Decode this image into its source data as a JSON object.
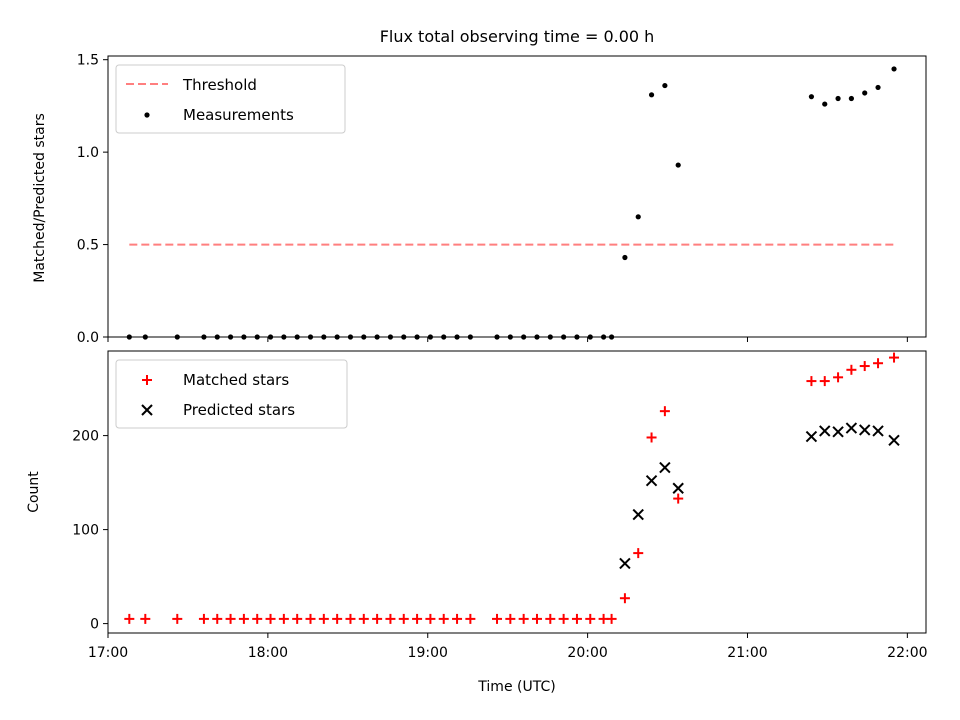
{
  "chart_data": [
    {
      "type": "scatter",
      "title": "Flux total observing time = 0.00 h",
      "xlabel": "",
      "ylabel": "Matched/Predicted stars",
      "xlim": [
        "17:00",
        "22:07"
      ],
      "ylim": [
        0,
        1.52
      ],
      "yticks": [
        0.0,
        0.5,
        1.0,
        1.5
      ],
      "ytick_labels": [
        "0.0",
        "0.5",
        "1.0",
        "1.5"
      ],
      "grid": false,
      "legend": "top-left",
      "threshold": {
        "name": "Threshold",
        "color": "#ff7f7f",
        "value": 0.5,
        "x": [
          "17:08",
          "21:55"
        ]
      },
      "series": [
        {
          "name": "Measurements",
          "color": "#000000",
          "x": [
            "17:08",
            "17:14",
            "17:26",
            "17:36",
            "17:41",
            "17:46",
            "17:51",
            "17:56",
            "18:01",
            "18:06",
            "18:11",
            "18:16",
            "18:21",
            "18:26",
            "18:31",
            "18:36",
            "18:41",
            "18:46",
            "18:51",
            "18:56",
            "19:01",
            "19:06",
            "19:11",
            "19:16",
            "19:26",
            "19:31",
            "19:36",
            "19:41",
            "19:46",
            "19:51",
            "19:56",
            "20:01",
            "20:06",
            "20:09",
            "20:14",
            "20:19",
            "20:24",
            "20:29",
            "20:34",
            "21:24",
            "21:29",
            "21:34",
            "21:39",
            "21:44",
            "21:49",
            "21:55"
          ],
          "y": [
            0,
            0,
            0,
            0,
            0,
            0,
            0,
            0,
            0,
            0,
            0,
            0,
            0,
            0,
            0,
            0,
            0,
            0,
            0,
            0,
            0,
            0,
            0,
            0,
            0,
            0,
            0,
            0,
            0,
            0,
            0,
            0,
            0,
            0,
            0.43,
            0.65,
            1.31,
            1.36,
            0.93,
            1.3,
            1.26,
            1.29,
            1.29,
            1.32,
            1.35,
            1.45
          ]
        }
      ]
    },
    {
      "type": "scatter",
      "xlabel": "Time (UTC)",
      "ylabel": "Count",
      "xlim": [
        "17:00",
        "22:07"
      ],
      "xticks": [
        "17:00",
        "18:00",
        "19:00",
        "20:00",
        "21:00",
        "22:00"
      ],
      "ylim": [
        -10,
        290
      ],
      "yticks": [
        0,
        100,
        200
      ],
      "grid": false,
      "legend": "top-left",
      "series": [
        {
          "name": "Matched stars",
          "color": "#ff0000",
          "marker": "plus",
          "x": [
            "17:08",
            "17:14",
            "17:26",
            "17:36",
            "17:41",
            "17:46",
            "17:51",
            "17:56",
            "18:01",
            "18:06",
            "18:11",
            "18:16",
            "18:21",
            "18:26",
            "18:31",
            "18:36",
            "18:41",
            "18:46",
            "18:51",
            "18:56",
            "19:01",
            "19:06",
            "19:11",
            "19:16",
            "19:26",
            "19:31",
            "19:36",
            "19:41",
            "19:46",
            "19:51",
            "19:56",
            "20:01",
            "20:06",
            "20:09",
            "20:14",
            "20:19",
            "20:24",
            "20:29",
            "20:34",
            "21:24",
            "21:29",
            "21:34",
            "21:39",
            "21:44",
            "21:49",
            "21:55"
          ],
          "y": [
            5,
            5,
            5,
            5,
            5,
            5,
            5,
            5,
            5,
            5,
            5,
            5,
            5,
            5,
            5,
            5,
            5,
            5,
            5,
            5,
            5,
            5,
            5,
            5,
            5,
            5,
            5,
            5,
            5,
            5,
            5,
            5,
            5,
            5,
            27,
            75,
            198,
            226,
            133,
            258,
            258,
            262,
            270,
            274,
            277,
            283
          ]
        },
        {
          "name": "Predicted stars",
          "color": "#000000",
          "marker": "x",
          "x": [
            "20:14",
            "20:19",
            "20:24",
            "20:29",
            "20:34",
            "21:24",
            "21:29",
            "21:34",
            "21:39",
            "21:44",
            "21:49",
            "21:55"
          ],
          "y": [
            64,
            116,
            152,
            166,
            144,
            199,
            205,
            204,
            208,
            206,
            205,
            195
          ]
        }
      ]
    }
  ]
}
